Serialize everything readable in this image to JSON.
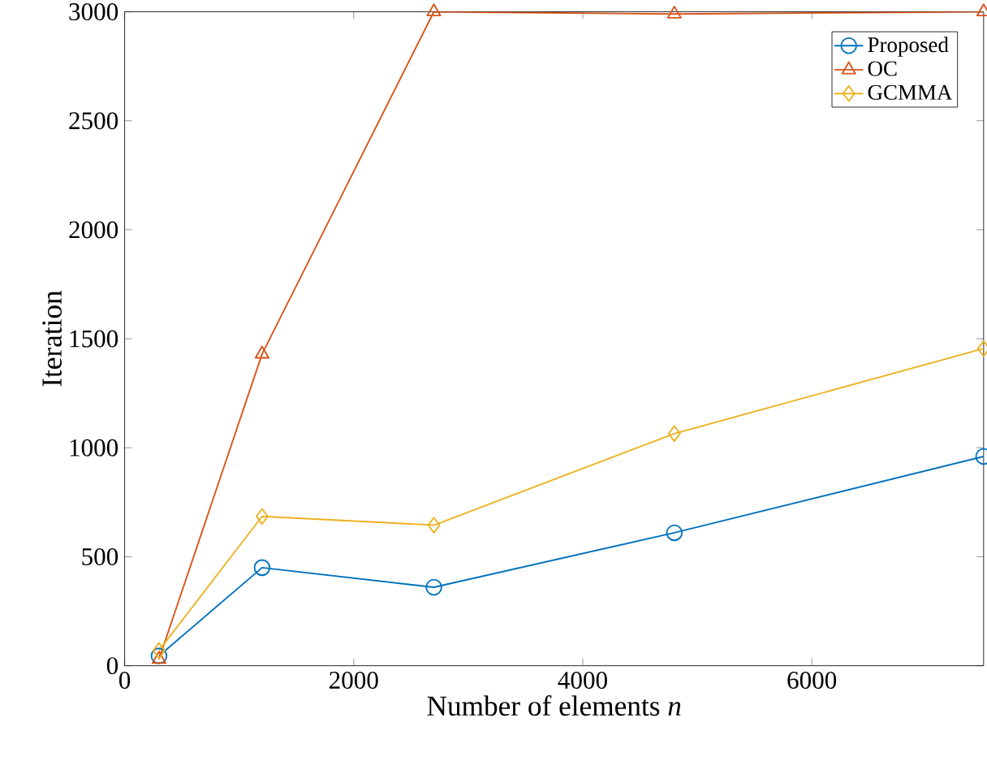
{
  "chart_data": {
    "type": "line",
    "xlabel": "Number of elements *n*",
    "ylabel": "Iteration",
    "x": [
      300,
      1200,
      2700,
      4800,
      7500
    ],
    "series": [
      {
        "name": "Proposed",
        "color": "#0072bd",
        "marker": "circle",
        "values": [
          45,
          450,
          360,
          610,
          960
        ]
      },
      {
        "name": "OC",
        "color": "#d95319",
        "marker": "triangle",
        "values": [
          30,
          1430,
          3000,
          2990,
          3000
        ]
      },
      {
        "name": "GCMMA",
        "color": "#edb120",
        "marker": "diamond",
        "values": [
          70,
          685,
          645,
          1065,
          1455
        ]
      }
    ],
    "xlim": [
      0,
      7500
    ],
    "ylim": [
      0,
      3000
    ],
    "xticks": [
      0,
      2000,
      4000,
      6000
    ],
    "yticks": [
      0,
      500,
      1000,
      1500,
      2000,
      2500,
      3000
    ],
    "legend": "top right",
    "grid": false
  }
}
